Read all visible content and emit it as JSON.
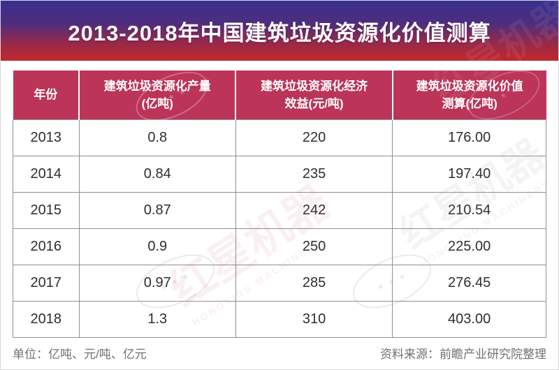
{
  "banner": {
    "title": "2013-2018年中国建筑垃圾资源化价值测算",
    "gradient_top_color": "#37308f",
    "gradient_bottom_color": "#c3282c",
    "title_color": "#ffffff"
  },
  "table": {
    "accent_color": "#bc3458",
    "border_color": "#8f8f8f",
    "columns": [
      "年份",
      "建筑垃圾资源化产量\n(亿吨)",
      "建筑垃圾资源化经济\n效益(元/吨)",
      "建筑垃圾资源化价值\n测算(亿吨)"
    ],
    "rows": [
      [
        "2013",
        "0.8",
        "220",
        "176.00"
      ],
      [
        "2014",
        "0.84",
        "235",
        "197.40"
      ],
      [
        "2015",
        "0.87",
        "242",
        "210.54"
      ],
      [
        "2016",
        "0.9",
        "250",
        "225.00"
      ],
      [
        "2017",
        "0.97",
        "285",
        "276.45"
      ],
      [
        "2018",
        "1.3",
        "310",
        "403.00"
      ]
    ]
  },
  "footer": {
    "left": "单位：亿吨、元/吨、亿元",
    "right": "资料来源：前瞻产业研究院整理"
  },
  "watermark": {
    "text": "红星机器",
    "latin": "HONGXING MACHINERY",
    "stars": "★ ★ ★"
  },
  "chart_data": {
    "type": "table",
    "title": "2013-2018年中国建筑垃圾资源化价值测算",
    "columns": [
      "年份",
      "建筑垃圾资源化产量(亿吨)",
      "建筑垃圾资源化经济效益(元/吨)",
      "建筑垃圾资源化价值测算(亿吨)"
    ],
    "rows": [
      [
        "2013",
        0.8,
        220,
        176.0
      ],
      [
        "2014",
        0.84,
        235,
        197.4
      ],
      [
        "2015",
        0.87,
        242,
        210.54
      ],
      [
        "2016",
        0.9,
        250,
        225.0
      ],
      [
        "2017",
        0.97,
        285,
        276.45
      ],
      [
        "2018",
        1.3,
        310,
        403.0
      ]
    ],
    "unit_note": "单位：亿吨、元/吨、亿元",
    "source": "资料来源：前瞻产业研究院整理"
  }
}
